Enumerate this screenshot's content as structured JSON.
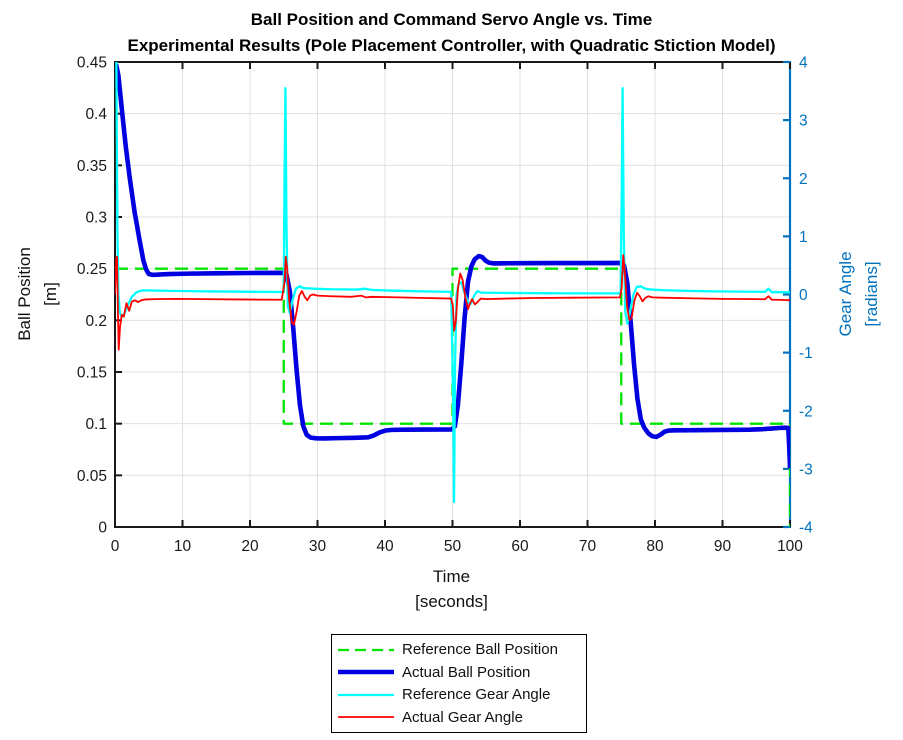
{
  "chart_data": {
    "type": "line",
    "title": "Ball Position and Command Servo Angle vs. Time",
    "subtitle": "Experimental Results (Pole Placement Controller, with Quadratic Stiction Model)",
    "xlabel": "Time",
    "xunit": "[seconds]",
    "ylabel_left": "Ball Position",
    "yunit_left": "[m]",
    "ylabel_right": "Gear Angle",
    "yunit_right": "[radians]",
    "xlim": [
      0,
      100
    ],
    "ylim_left": [
      0,
      0.45
    ],
    "ylim_right": [
      -4,
      4
    ],
    "x_ticks": [
      "0",
      "10",
      "20",
      "30",
      "40",
      "50",
      "60",
      "70",
      "80",
      "90",
      "100"
    ],
    "y_left_ticks": [
      "0",
      "0.05",
      "0.1",
      "0.15",
      "0.2",
      "0.25",
      "0.3",
      "0.35",
      "0.4",
      "0.45"
    ],
    "y_right_ticks": [
      "-4",
      "-3",
      "-2",
      "-1",
      "0",
      "1",
      "2",
      "3",
      "4"
    ],
    "grid": true,
    "legend_position": "below-center",
    "colors": {
      "background": "#ffffff",
      "grid": "#e0e0e0",
      "axis": "#1a1a1a",
      "right_axis": "#0072bd",
      "text": "#111111"
    },
    "series": [
      {
        "name": "Reference Ball Position",
        "axis": "left",
        "color": "#00e400",
        "style": "dashed",
        "width": 2.3,
        "points": [
          [
            0,
            0.25
          ],
          [
            25,
            0.25
          ],
          [
            25,
            0.1
          ],
          [
            50,
            0.1
          ],
          [
            50,
            0.25
          ],
          [
            75,
            0.25
          ],
          [
            75,
            0.1
          ],
          [
            100,
            0.1
          ],
          [
            100,
            0
          ]
        ]
      },
      {
        "name": "Actual Ball Position",
        "axis": "left",
        "color": "#0000e0",
        "style": "solid",
        "width": 4.6,
        "points": [
          [
            0.15,
            0.448
          ],
          [
            0.5,
            0.437
          ],
          [
            1.0,
            0.405
          ],
          [
            1.6,
            0.368
          ],
          [
            2.2,
            0.337
          ],
          [
            2.9,
            0.305
          ],
          [
            3.6,
            0.279
          ],
          [
            4.2,
            0.258
          ],
          [
            4.6,
            0.2495
          ],
          [
            5.0,
            0.2448
          ],
          [
            5.6,
            0.244
          ],
          [
            6.5,
            0.2443
          ],
          [
            8,
            0.2448
          ],
          [
            11,
            0.2452
          ],
          [
            15,
            0.2455
          ],
          [
            20,
            0.2458
          ],
          [
            24.9,
            0.246
          ],
          [
            25.4,
            0.2445
          ],
          [
            25.9,
            0.228
          ],
          [
            26.4,
            0.193
          ],
          [
            26.9,
            0.152
          ],
          [
            27.4,
            0.118
          ],
          [
            27.9,
            0.0975
          ],
          [
            28.4,
            0.0892
          ],
          [
            29,
            0.0865
          ],
          [
            29.8,
            0.0858
          ],
          [
            31,
            0.0857
          ],
          [
            33,
            0.086
          ],
          [
            35.5,
            0.0863
          ],
          [
            37.5,
            0.0868
          ],
          [
            38.3,
            0.0885
          ],
          [
            39.2,
            0.0915
          ],
          [
            40.1,
            0.0934
          ],
          [
            41,
            0.094
          ],
          [
            43,
            0.0942
          ],
          [
            46,
            0.0943
          ],
          [
            49.9,
            0.0944
          ],
          [
            50.35,
            0.0975
          ],
          [
            50.8,
            0.118
          ],
          [
            51.3,
            0.158
          ],
          [
            51.8,
            0.203
          ],
          [
            52.3,
            0.2375
          ],
          [
            52.8,
            0.2525
          ],
          [
            53.3,
            0.2592
          ],
          [
            53.9,
            0.2622
          ],
          [
            54.4,
            0.2612
          ],
          [
            54.9,
            0.2578
          ],
          [
            55.4,
            0.2558
          ],
          [
            56,
            0.2551
          ],
          [
            57.5,
            0.2552
          ],
          [
            60,
            0.2553
          ],
          [
            65,
            0.2554
          ],
          [
            70,
            0.2554
          ],
          [
            74.9,
            0.2555
          ],
          [
            75.4,
            0.2535
          ],
          [
            75.9,
            0.236
          ],
          [
            76.4,
            0.198
          ],
          [
            76.9,
            0.157
          ],
          [
            77.4,
            0.124
          ],
          [
            77.9,
            0.1042
          ],
          [
            78.4,
            0.0962
          ],
          [
            79,
            0.0908
          ],
          [
            79.6,
            0.0878
          ],
          [
            80.2,
            0.0872
          ],
          [
            80.8,
            0.0893
          ],
          [
            81.4,
            0.0922
          ],
          [
            82,
            0.0933
          ],
          [
            83,
            0.0936
          ],
          [
            86,
            0.0937
          ],
          [
            90,
            0.0939
          ],
          [
            94,
            0.0942
          ],
          [
            96,
            0.0947
          ],
          [
            97.2,
            0.0953
          ],
          [
            98.3,
            0.0958
          ],
          [
            99.3,
            0.0961
          ],
          [
            99.75,
            0.0958
          ],
          [
            99.9,
            0.075
          ],
          [
            100,
            0.057
          ]
        ]
      },
      {
        "name": "Reference Gear Angle",
        "axis": "right",
        "color": "#00ffff",
        "style": "solid",
        "width": 2.3,
        "points": [
          [
            0.2,
            4.0
          ],
          [
            0.35,
            1.2
          ],
          [
            0.5,
            0.0
          ],
          [
            0.7,
            -0.3
          ],
          [
            1.0,
            -0.39
          ],
          [
            1.4,
            -0.33
          ],
          [
            1.9,
            -0.18
          ],
          [
            2.5,
            -0.04
          ],
          [
            3.2,
            0.04
          ],
          [
            4.0,
            0.07
          ],
          [
            5,
            0.07
          ],
          [
            7,
            0.065
          ],
          [
            10,
            0.06
          ],
          [
            14,
            0.053
          ],
          [
            19,
            0.048
          ],
          [
            24.8,
            0.043
          ],
          [
            25.0,
            0.05
          ],
          [
            25.1,
            1.8
          ],
          [
            25.25,
            3.55
          ],
          [
            25.4,
            1.2
          ],
          [
            25.6,
            -0.2
          ],
          [
            25.9,
            -0.32
          ],
          [
            26.3,
            -0.1
          ],
          [
            26.8,
            0.1
          ],
          [
            27.3,
            0.14
          ],
          [
            28,
            0.11
          ],
          [
            29.5,
            0.1
          ],
          [
            32,
            0.09
          ],
          [
            36,
            0.085
          ],
          [
            37,
            0.1
          ],
          [
            38,
            0.08
          ],
          [
            40,
            0.07
          ],
          [
            45,
            0.055
          ],
          [
            49.8,
            0.045
          ],
          [
            50.1,
            -1.8
          ],
          [
            50.22,
            -3.57
          ],
          [
            50.38,
            -1.2
          ],
          [
            50.6,
            0.0
          ],
          [
            50.9,
            0.18
          ],
          [
            51.3,
            0.21
          ],
          [
            51.8,
            0.02
          ],
          [
            52.3,
            -0.13
          ],
          [
            52.7,
            -0.16
          ],
          [
            53.2,
            -0.02
          ],
          [
            53.7,
            0.06
          ],
          [
            54.3,
            0.03
          ],
          [
            55,
            0.03
          ],
          [
            57,
            0.028
          ],
          [
            60,
            0.025
          ],
          [
            65,
            0.022
          ],
          [
            70,
            0.02
          ],
          [
            74.9,
            0.02
          ],
          [
            75.05,
            1.5
          ],
          [
            75.2,
            3.55
          ],
          [
            75.38,
            1.0
          ],
          [
            75.6,
            -0.3
          ],
          [
            75.9,
            -0.5
          ],
          [
            76.3,
            -0.3
          ],
          [
            76.8,
            0.0
          ],
          [
            77.3,
            0.13
          ],
          [
            77.9,
            0.14
          ],
          [
            78.5,
            0.1
          ],
          [
            79.5,
            0.085
          ],
          [
            81,
            0.075
          ],
          [
            84,
            0.065
          ],
          [
            88,
            0.055
          ],
          [
            92,
            0.05
          ],
          [
            95,
            0.047
          ],
          [
            96.3,
            0.046
          ],
          [
            96.8,
            0.1
          ],
          [
            97.3,
            0.04
          ],
          [
            98,
            0.042
          ],
          [
            99,
            0.04
          ],
          [
            100,
            0.038
          ]
        ]
      },
      {
        "name": "Actual Gear Angle",
        "axis": "right",
        "color": "#ff0000",
        "style": "solid",
        "width": 1.8,
        "points": [
          [
            0,
            0.0
          ],
          [
            0.18,
            0.62
          ],
          [
            0.3,
            0.65
          ],
          [
            0.42,
            -0.2
          ],
          [
            0.55,
            -0.95
          ],
          [
            0.75,
            -0.55
          ],
          [
            1.0,
            -0.35
          ],
          [
            1.3,
            -0.38
          ],
          [
            1.7,
            -0.15
          ],
          [
            2.1,
            -0.28
          ],
          [
            2.5,
            -0.12
          ],
          [
            3.0,
            -0.1
          ],
          [
            3.4,
            -0.13
          ],
          [
            3.9,
            -0.1
          ],
          [
            4.5,
            -0.085
          ],
          [
            6,
            -0.08
          ],
          [
            9,
            -0.075
          ],
          [
            13,
            -0.08
          ],
          [
            18,
            -0.085
          ],
          [
            24.7,
            -0.09
          ],
          [
            25.1,
            0.2
          ],
          [
            25.3,
            0.65
          ],
          [
            25.5,
            0.45
          ],
          [
            25.8,
            -0.1
          ],
          [
            26.2,
            -0.48
          ],
          [
            26.5,
            -0.52
          ],
          [
            26.9,
            -0.3
          ],
          [
            27.3,
            -0.02
          ],
          [
            27.7,
            0.06
          ],
          [
            28.1,
            -0.04
          ],
          [
            28.5,
            -0.1
          ],
          [
            28.9,
            -0.02
          ],
          [
            29.3,
            0.0
          ],
          [
            30,
            -0.02
          ],
          [
            32,
            -0.03
          ],
          [
            35,
            -0.04
          ],
          [
            36.5,
            -0.02
          ],
          [
            37.2,
            -0.05
          ],
          [
            38,
            -0.04
          ],
          [
            42,
            -0.05
          ],
          [
            46,
            -0.06
          ],
          [
            49.8,
            -0.07
          ],
          [
            50.05,
            -0.2
          ],
          [
            50.25,
            -0.62
          ],
          [
            50.5,
            -0.45
          ],
          [
            50.8,
            0.1
          ],
          [
            51.15,
            0.36
          ],
          [
            51.5,
            0.25
          ],
          [
            51.9,
            -0.05
          ],
          [
            52.3,
            -0.25
          ],
          [
            52.6,
            -0.15
          ],
          [
            52.9,
            -0.08
          ],
          [
            53.3,
            -0.17
          ],
          [
            53.7,
            -0.13
          ],
          [
            54.2,
            -0.07
          ],
          [
            55,
            -0.08
          ],
          [
            58,
            -0.07
          ],
          [
            62,
            -0.06
          ],
          [
            68,
            -0.055
          ],
          [
            74.8,
            -0.05
          ],
          [
            75.05,
            0.1
          ],
          [
            75.3,
            0.68
          ],
          [
            75.55,
            0.35
          ],
          [
            75.85,
            -0.2
          ],
          [
            76.2,
            -0.44
          ],
          [
            76.55,
            -0.4
          ],
          [
            76.95,
            -0.1
          ],
          [
            77.35,
            0.03
          ],
          [
            77.75,
            -0.03
          ],
          [
            78.15,
            -0.12
          ],
          [
            78.55,
            -0.06
          ],
          [
            79,
            -0.03
          ],
          [
            79.6,
            -0.05
          ],
          [
            81,
            -0.055
          ],
          [
            85,
            -0.065
          ],
          [
            90,
            -0.075
          ],
          [
            95,
            -0.08
          ],
          [
            96.3,
            -0.082
          ],
          [
            96.8,
            -0.03
          ],
          [
            97.3,
            -0.09
          ],
          [
            98,
            -0.09
          ],
          [
            99,
            -0.095
          ],
          [
            100,
            -0.1
          ]
        ]
      }
    ]
  }
}
